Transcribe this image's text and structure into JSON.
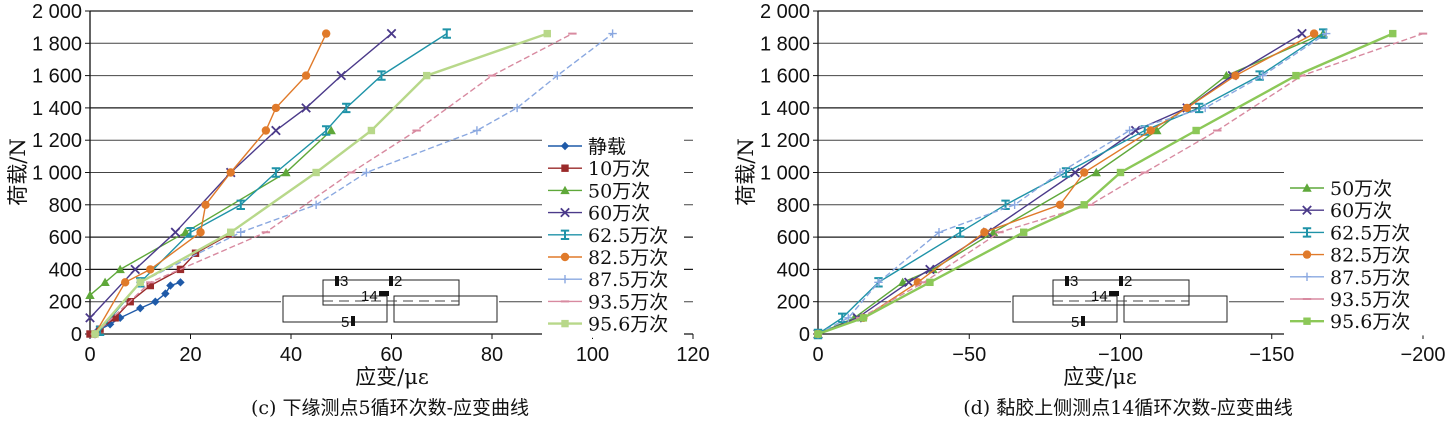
{
  "chart_data": [
    {
      "type": "line",
      "caption": "(c) 下缘测点5循环次数-应变曲线",
      "xlabel": "应变/με",
      "ylabel": "荷载/N",
      "xlim": [
        0,
        120
      ],
      "ylim": [
        0,
        2000
      ],
      "xticks": [
        "0",
        "20",
        "40",
        "60",
        "80",
        "100",
        "120"
      ],
      "yticks": [
        "0",
        "200",
        "400",
        "600",
        "800",
        "1 000",
        "1 200",
        "1 400",
        "1 600",
        "1 800",
        "2 000"
      ],
      "grid": "horizontal",
      "legend_position": "right",
      "inset_labels": [
        "3",
        "2",
        "14",
        "5"
      ],
      "series": [
        {
          "name": "静载",
          "color": "#1f5aa8",
          "marker": "diamond",
          "points": [
            [
              0,
              0
            ],
            [
              1.5,
              20
            ],
            [
              4,
              60
            ],
            [
              6,
              100
            ],
            [
              10,
              160
            ],
            [
              13,
              200
            ],
            [
              15,
              250
            ],
            [
              16,
              300
            ],
            [
              18,
              320
            ]
          ]
        },
        {
          "name": "10万次",
          "color": "#9a2a2a",
          "marker": "square",
          "points": [
            [
              0,
              0
            ],
            [
              2,
              30
            ],
            [
              5,
              100
            ],
            [
              8,
              200
            ],
            [
              12,
              300
            ],
            [
              18,
              400
            ],
            [
              21,
              500
            ],
            [
              28,
              620
            ]
          ]
        },
        {
          "name": "50万次",
          "color": "#5fa83a",
          "marker": "triangle",
          "points": [
            [
              0,
              240
            ],
            [
              3,
              320
            ],
            [
              6,
              400
            ],
            [
              19,
              630
            ],
            [
              39,
              1000
            ],
            [
              48,
              1260
            ]
          ]
        },
        {
          "name": "60万次",
          "color": "#4b3a8a",
          "marker": "x",
          "points": [
            [
              0,
              100
            ],
            [
              9,
              400
            ],
            [
              17,
              630
            ],
            [
              28,
              1000
            ],
            [
              37,
              1260
            ],
            [
              43,
              1400
            ],
            [
              50,
              1600
            ],
            [
              60,
              1860
            ]
          ]
        },
        {
          "name": "62.5万次",
          "color": "#1f93a8",
          "marker": "bar",
          "points": [
            [
              2,
              20
            ],
            [
              10,
              320
            ],
            [
              20,
              630
            ],
            [
              30,
              800
            ],
            [
              37,
              1000
            ],
            [
              47,
              1260
            ],
            [
              51,
              1400
            ],
            [
              58,
              1600
            ],
            [
              71,
              1860
            ]
          ]
        },
        {
          "name": "82.5万次",
          "color": "#e07a2a",
          "marker": "circle",
          "points": [
            [
              1,
              0
            ],
            [
              7,
              320
            ],
            [
              12,
              400
            ],
            [
              22,
              630
            ],
            [
              23,
              800
            ],
            [
              28,
              1000
            ],
            [
              35,
              1260
            ],
            [
              37,
              1400
            ],
            [
              43,
              1600
            ],
            [
              47,
              1860
            ]
          ]
        },
        {
          "name": "87.5万次",
          "color": "#8aa8e0",
          "marker": "plus",
          "points": [
            [
              1,
              0
            ],
            [
              10,
              320
            ],
            [
              30,
              630
            ],
            [
              45,
              800
            ],
            [
              55,
              1000
            ],
            [
              77,
              1260
            ],
            [
              85,
              1400
            ],
            [
              93,
              1600
            ],
            [
              104,
              1860
            ]
          ]
        },
        {
          "name": "93.5万次",
          "color": "#d88aa0",
          "marker": "dash",
          "points": [
            [
              1,
              0
            ],
            [
              12,
              320
            ],
            [
              35,
              630
            ],
            [
              52,
              1000
            ],
            [
              65,
              1260
            ],
            [
              80,
              1600
            ],
            [
              96,
              1860
            ]
          ]
        },
        {
          "name": "95.6万次",
          "color": "#b8d88a",
          "marker": "square",
          "points": [
            [
              1,
              0
            ],
            [
              10,
              320
            ],
            [
              28,
              630
            ],
            [
              45,
              1000
            ],
            [
              56,
              1260
            ],
            [
              67,
              1600
            ],
            [
              91,
              1860
            ]
          ]
        }
      ]
    },
    {
      "type": "line",
      "caption": "(d) 黏胶上侧测点14循环次数-应变曲线",
      "xlabel": "应变/με",
      "ylabel": "荷载/N",
      "xlim": [
        0,
        -200
      ],
      "ylim": [
        0,
        2000
      ],
      "xticks": [
        "0",
        "−50",
        "−100",
        "−150",
        "−200"
      ],
      "yticks": [
        "0",
        "200",
        "400",
        "600",
        "800",
        "1 000",
        "1 200",
        "1 400",
        "1 600",
        "1 800",
        "2 000"
      ],
      "grid": "horizontal",
      "legend_position": "right",
      "inset_labels": [
        "3",
        "2",
        "14",
        "5"
      ],
      "series": [
        {
          "name": "50万次",
          "color": "#5fa83a",
          "marker": "triangle",
          "points": [
            [
              0,
              0
            ],
            [
              -12,
              100
            ],
            [
              -28,
              320
            ],
            [
              -38,
              400
            ],
            [
              -58,
              630
            ],
            [
              -92,
              1000
            ],
            [
              -112,
              1260
            ],
            [
              -135,
              1600
            ],
            [
              -167,
              1860
            ]
          ]
        },
        {
          "name": "60万次",
          "color": "#4b3a8a",
          "marker": "x",
          "points": [
            [
              0,
              0
            ],
            [
              -13,
              100
            ],
            [
              -30,
              320
            ],
            [
              -37,
              400
            ],
            [
              -56,
              630
            ],
            [
              -85,
              1000
            ],
            [
              -105,
              1260
            ],
            [
              -122,
              1400
            ],
            [
              -137,
              1600
            ],
            [
              -160,
              1860
            ]
          ]
        },
        {
          "name": "62.5万次",
          "color": "#1f93a8",
          "marker": "bar",
          "points": [
            [
              0,
              0
            ],
            [
              -8,
              100
            ],
            [
              -20,
              320
            ],
            [
              -47,
              630
            ],
            [
              -62,
              800
            ],
            [
              -82,
              1000
            ],
            [
              -108,
              1260
            ],
            [
              -126,
              1400
            ],
            [
              -146,
              1600
            ],
            [
              -167,
              1860
            ]
          ]
        },
        {
          "name": "82.5万次",
          "color": "#e07a2a",
          "marker": "circle",
          "points": [
            [
              0,
              0
            ],
            [
              -15,
              100
            ],
            [
              -33,
              320
            ],
            [
              -55,
              630
            ],
            [
              -80,
              800
            ],
            [
              -88,
              1000
            ],
            [
              -110,
              1260
            ],
            [
              -122,
              1400
            ],
            [
              -138,
              1600
            ],
            [
              -164,
              1860
            ]
          ]
        },
        {
          "name": "87.5万次",
          "color": "#8aa8e0",
          "marker": "plus",
          "points": [
            [
              0,
              0
            ],
            [
              -10,
              100
            ],
            [
              -20,
              320
            ],
            [
              -40,
              630
            ],
            [
              -65,
              800
            ],
            [
              -80,
              1000
            ],
            [
              -103,
              1260
            ],
            [
              -128,
              1400
            ],
            [
              -147,
              1600
            ],
            [
              -168,
              1860
            ]
          ]
        },
        {
          "name": "93.5万次",
          "color": "#d88aa0",
          "marker": "dash",
          "points": [
            [
              0,
              0
            ],
            [
              -14,
              100
            ],
            [
              -35,
              320
            ],
            [
              -60,
              630
            ],
            [
              -90,
              800
            ],
            [
              -108,
              1000
            ],
            [
              -132,
              1260
            ],
            [
              -160,
              1600
            ],
            [
              -200,
              1860
            ]
          ]
        },
        {
          "name": "95.6万次",
          "color": "#8cc858",
          "marker": "square",
          "points": [
            [
              0,
              0
            ],
            [
              -15,
              100
            ],
            [
              -37,
              320
            ],
            [
              -68,
              630
            ],
            [
              -88,
              800
            ],
            [
              -100,
              1000
            ],
            [
              -125,
              1260
            ],
            [
              -158,
              1600
            ],
            [
              -190,
              1860
            ]
          ]
        }
      ]
    }
  ]
}
